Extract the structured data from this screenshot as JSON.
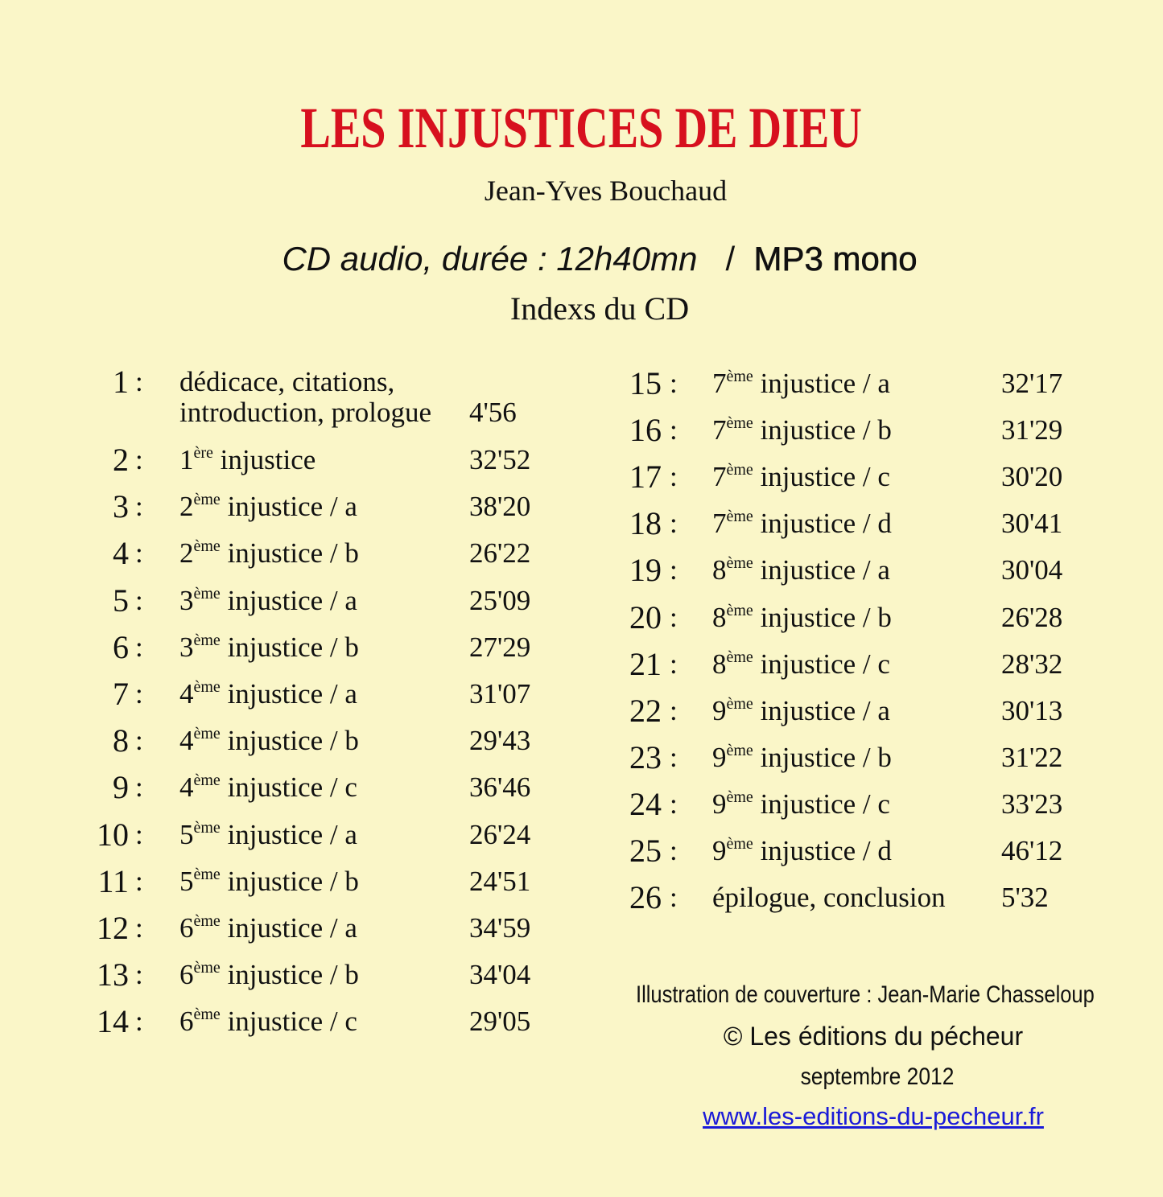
{
  "title": "LES INJUSTICES DE DIEU",
  "author": "Jean-Yves Bouchaud",
  "format": {
    "italic": "CD audio, durée : 12h40mn",
    "separator": "/",
    "bold": "MP3 mono"
  },
  "indexes_heading": "Indexs du CD",
  "colors": {
    "background": "#faf6c8",
    "title": "#d7101e",
    "link": "#1a1ad8"
  },
  "tracks": [
    {
      "num": "1",
      "lines": [
        "dédicace, citations,",
        "introduction, prologue"
      ],
      "time": "4'56"
    },
    {
      "num": "2",
      "ord": "1",
      "sup": "ère",
      "title": "injustice",
      "time": "32'52"
    },
    {
      "num": "3",
      "ord": "2",
      "sup": "ème",
      "title": "injustice / a",
      "time": "38'20"
    },
    {
      "num": "4",
      "ord": "2",
      "sup": "ème",
      "title": "injustice / b",
      "time": "26'22"
    },
    {
      "num": "5",
      "ord": "3",
      "sup": "ème",
      "title": "injustice / a",
      "time": "25'09"
    },
    {
      "num": "6",
      "ord": "3",
      "sup": "ème",
      "title": "injustice / b",
      "time": "27'29"
    },
    {
      "num": "7",
      "ord": "4",
      "sup": "ème",
      "title": "injustice / a",
      "time": "31'07"
    },
    {
      "num": "8",
      "ord": "4",
      "sup": "ème",
      "title": "injustice / b",
      "time": "29'43"
    },
    {
      "num": "9",
      "ord": "4",
      "sup": "ème",
      "title": "injustice / c",
      "time": "36'46"
    },
    {
      "num": "10",
      "ord": "5",
      "sup": "ème",
      "title": "injustice / a",
      "time": "26'24"
    },
    {
      "num": "11",
      "ord": "5",
      "sup": "ème",
      "title": "injustice / b",
      "time": "24'51"
    },
    {
      "num": "12",
      "ord": "6",
      "sup": "ème",
      "title": "injustice / a",
      "time": "34'59"
    },
    {
      "num": "13",
      "ord": "6",
      "sup": "ème",
      "title": "injustice / b",
      "time": "34'04"
    },
    {
      "num": "14",
      "ord": "6",
      "sup": "ème",
      "title": "injustice / c",
      "time": "29'05"
    },
    {
      "num": "15",
      "ord": "7",
      "sup": "ème",
      "title": "injustice / a",
      "time": "32'17"
    },
    {
      "num": "16",
      "ord": "7",
      "sup": "ème",
      "title": "injustice / b",
      "time": "31'29"
    },
    {
      "num": "17",
      "ord": "7",
      "sup": "ème",
      "title": "injustice / c",
      "time": "30'20"
    },
    {
      "num": "18",
      "ord": "7",
      "sup": "ème",
      "title": "injustice / d",
      "time": "30'41"
    },
    {
      "num": "19",
      "ord": "8",
      "sup": "ème",
      "title": "injustice / a",
      "time": "30'04"
    },
    {
      "num": "20",
      "ord": "8",
      "sup": "ème",
      "title": "injustice / b",
      "time": "26'28"
    },
    {
      "num": "21",
      "ord": "8",
      "sup": "ème",
      "title": "injustice / c",
      "time": "28'32"
    },
    {
      "num": "22",
      "ord": "9",
      "sup": "ème",
      "title": "injustice / a",
      "time": "30'13"
    },
    {
      "num": "23",
      "ord": "9",
      "sup": "ème",
      "title": "injustice / b",
      "time": "31'22"
    },
    {
      "num": "24",
      "ord": "9",
      "sup": "ème",
      "title": "injustice / c",
      "time": "33'23"
    },
    {
      "num": "25",
      "ord": "9",
      "sup": "ème",
      "title": "injustice / d",
      "time": "46'12"
    },
    {
      "num": "26",
      "title": "épilogue, conclusion",
      "time": "5'32"
    }
  ],
  "colon": ":",
  "footer": {
    "illustration": "Illustration de couverture : Jean-Marie Chasseloup",
    "copyright": "© Les éditions du pécheur",
    "date": "septembre 2012",
    "website": "www.les-editions-du-pecheur.fr"
  }
}
